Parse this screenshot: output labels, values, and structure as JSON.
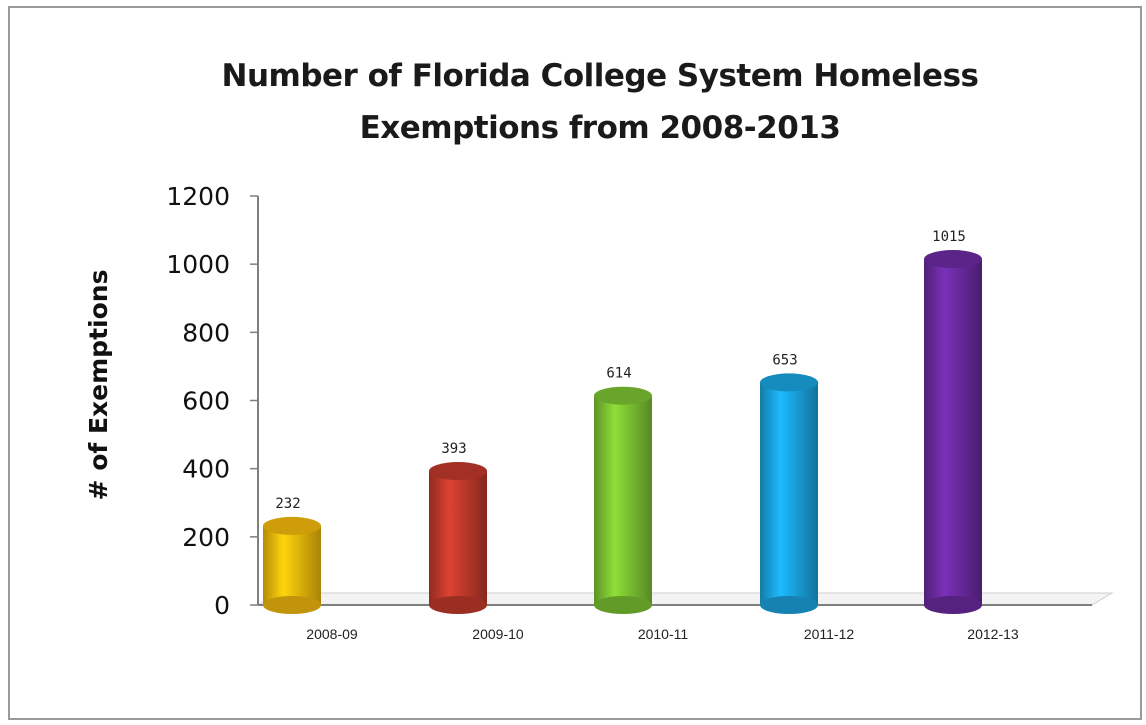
{
  "chart_data": {
    "type": "bar",
    "title_lines": [
      "Number of Florida College System Homeless",
      "Exemptions from 2008-2013"
    ],
    "xlabel": "",
    "ylabel": "# of Exemptions",
    "categories": [
      "2008-09",
      "2009-10",
      "2010-11",
      "2011-12",
      "2012-13"
    ],
    "values": [
      232,
      393,
      614,
      653,
      1015
    ],
    "data_labels": [
      "232",
      "393",
      "614",
      "653",
      "1015"
    ],
    "colors": [
      "#f2b90b",
      "#c0392b",
      "#7cc232",
      "#1aa3df",
      "#6a2aa0"
    ],
    "ylim": [
      0,
      1200
    ],
    "yticks": [
      0,
      200,
      400,
      600,
      800,
      1000,
      1200
    ],
    "grid": false,
    "legend": "none"
  }
}
